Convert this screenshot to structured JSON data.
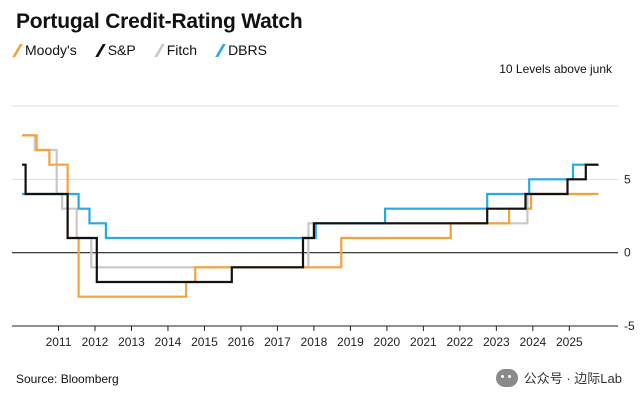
{
  "header": {
    "title": "Portugal Credit-Rating Watch"
  },
  "unit_note": "10 Levels above junk",
  "source": "Source: Bloomberg",
  "watermark": {
    "text": "公众号 · 边际Lab",
    "icon": "wechat-icon"
  },
  "colors": {
    "Moody's": "#f2a33a",
    "S&P": "#111111",
    "Fitch": "#c8c8c8",
    "DBRS": "#28a9e0",
    "axis": "#222222",
    "grid": "#dddddd"
  },
  "chart_data": {
    "type": "line",
    "title": "Portugal Credit-Rating Watch",
    "ylabel": "10 Levels above junk",
    "xlabel": "",
    "xlim": [
      2010.0,
      2025.95
    ],
    "ylim": [
      -5,
      10
    ],
    "x_ticks": [
      2011,
      2012,
      2013,
      2014,
      2015,
      2016,
      2017,
      2018,
      2019,
      2020,
      2021,
      2022,
      2023,
      2024,
      2025
    ],
    "y_ticks": [
      5,
      0,
      -5
    ],
    "grid": true,
    "legend": "top-left",
    "series": [
      {
        "name": "Moody's",
        "x": [
          2010.0,
          2010.4,
          2010.4,
          2010.75,
          2010.75,
          2011.25,
          2011.25,
          2011.55,
          2011.55,
          2014.5,
          2014.5,
          2014.75,
          2014.75,
          2018.75,
          2018.75,
          2021.75,
          2021.75,
          2023.35,
          2023.35,
          2023.95,
          2023.95,
          2025.4,
          2025.4,
          2025.8
        ],
        "y": [
          8,
          8,
          7,
          7,
          6,
          6,
          1,
          1,
          -3,
          -3,
          -2,
          -2,
          -1,
          -1,
          1,
          1,
          2,
          2,
          3,
          3,
          4,
          4,
          4,
          4
        ]
      },
      {
        "name": "S&P",
        "x": [
          2010.0,
          2010.1,
          2010.1,
          2011.25,
          2011.25,
          2012.05,
          2012.05,
          2015.75,
          2015.75,
          2017.7,
          2017.7,
          2018.0,
          2018.0,
          2019.2,
          2019.2,
          2021.75,
          2021.75,
          2022.75,
          2022.75,
          2023.8,
          2023.8,
          2024.95,
          2024.95,
          2025.45,
          2025.45,
          2025.8
        ],
        "y": [
          6,
          6,
          4,
          4,
          1,
          1,
          -2,
          -2,
          -1,
          -1,
          1,
          1,
          2,
          2,
          2,
          2,
          2,
          2,
          3,
          3,
          4,
          4,
          5,
          5,
          6,
          6
        ]
      },
      {
        "name": "Fitch",
        "x": [
          2010.0,
          2010.35,
          2010.35,
          2010.95,
          2010.95,
          2011.1,
          2011.1,
          2011.5,
          2011.5,
          2011.9,
          2011.9,
          2014.4,
          2014.4,
          2017.85,
          2017.85,
          2018.25,
          2018.25,
          2019.95,
          2019.95,
          2021.9,
          2021.9,
          2023.85,
          2023.85,
          2024.2,
          2024.2,
          2025.75
        ],
        "y": [
          8,
          8,
          7,
          7,
          4,
          4,
          3,
          3,
          1,
          1,
          -1,
          -1,
          -1,
          -1,
          2,
          2,
          2,
          2,
          2,
          2,
          2,
          2,
          4,
          4,
          4,
          4
        ]
      },
      {
        "name": "DBRS",
        "x": [
          2010.0,
          2011.55,
          2011.55,
          2011.85,
          2011.85,
          2012.3,
          2012.3,
          2018.05,
          2018.05,
          2019.95,
          2019.95,
          2021.05,
          2021.05,
          2022.75,
          2022.75,
          2023.9,
          2023.9,
          2025.1,
          2025.1,
          2025.8
        ],
        "y": [
          4,
          4,
          3,
          3,
          2,
          2,
          1,
          1,
          2,
          2,
          3,
          3,
          3,
          3,
          4,
          4,
          5,
          5,
          6,
          6
        ]
      }
    ]
  }
}
